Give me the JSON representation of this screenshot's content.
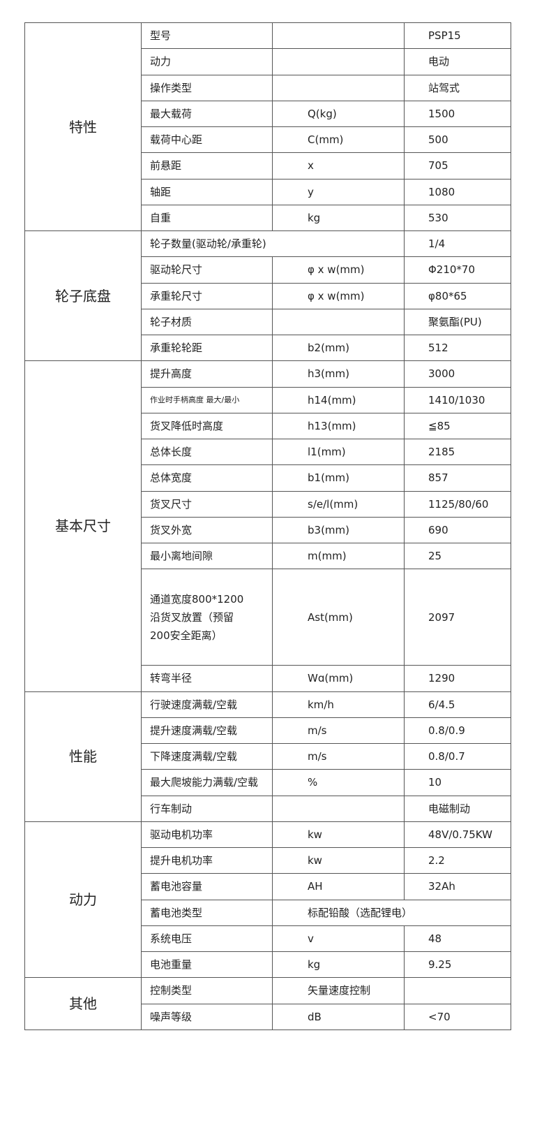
{
  "table": {
    "groups": [
      {
        "name": "特性",
        "rows": [
          [
            "型号",
            "PSP15"
          ],
          [
            "动力",
            "电动"
          ],
          [
            "操作类型",
            "站驾式"
          ],
          [
            "最大载荷",
            "Q(kg)",
            "1500"
          ],
          [
            "载荷中心距",
            "C(mm)",
            "500"
          ],
          [
            "前悬距",
            "x",
            "705"
          ],
          [
            "轴距",
            "y",
            "1080"
          ],
          [
            "自重",
            "kg",
            "530"
          ]
        ]
      },
      {
        "name": "轮子底盘",
        "rows": [
          [
            "轮子数量(驱动轮/承重轮)",
            "1/4"
          ],
          [
            "驱动轮尺寸",
            "φ x w(mm)",
            "Φ210*70"
          ],
          [
            "承重轮尺寸",
            "φ x w(mm)",
            "φ80*65"
          ],
          [
            "轮子材质",
            "聚氨酯(PU)"
          ],
          [
            "承重轮轮距",
            "b2(mm)",
            "512"
          ]
        ]
      },
      {
        "name": "基本尺寸",
        "rows": [
          [
            "提升高度",
            "h3(mm)",
            "3000"
          ],
          [
            "作业时手柄高度  最大/最小",
            "h14(mm)",
            "1410/1030"
          ],
          [
            "货叉降低时高度",
            "h13(mm)",
            "≦85"
          ],
          [
            "总体长度",
            "l1(mm)",
            "2185"
          ],
          [
            "总体宽度",
            "b1(mm)",
            "857"
          ],
          [
            "货叉尺寸",
            "s/e/l(mm)",
            "1125/80/60"
          ],
          [
            "货叉外宽",
            "b3(mm)",
            "690"
          ],
          [
            "最小离地间隙",
            "m(mm)",
            "25"
          ],
          [
            "通道宽度800*1200\n沿货叉放置（预留\n200安全距离）",
            "Ast(mm)",
            "2097"
          ],
          [
            "转弯半径",
            "Wɑ(mm)",
            "1290"
          ]
        ]
      },
      {
        "name": "性能",
        "rows": [
          [
            "行驶速度满载/空载",
            "km/h",
            "6/4.5"
          ],
          [
            "提升速度满载/空载",
            "m/s",
            "0.8/0.9"
          ],
          [
            "下降速度满载/空载",
            "m/s",
            "0.8/0.7"
          ],
          [
            "最大爬坡能力满载/空载",
            "%",
            "10"
          ],
          [
            "行车制动",
            "电磁制动"
          ]
        ]
      },
      {
        "name": "动力",
        "rows": [
          [
            "驱动电机功率",
            "kw",
            "48V/0.75KW"
          ],
          [
            "提升电机功率",
            "kw",
            "2.2"
          ],
          [
            "蓄电池容量",
            "AH",
            "32Ah"
          ],
          [
            "蓄电池类型",
            "标配铅酸（选配锂电）"
          ],
          [
            "系统电压",
            "v",
            "48"
          ],
          [
            "电池重量",
            "kg",
            "9.25"
          ]
        ]
      },
      {
        "name": "其他",
        "rows": [
          [
            "控制类型",
            "矢量速度控制"
          ],
          [
            "噪声等级",
            "dB",
            "<70"
          ]
        ]
      }
    ]
  }
}
